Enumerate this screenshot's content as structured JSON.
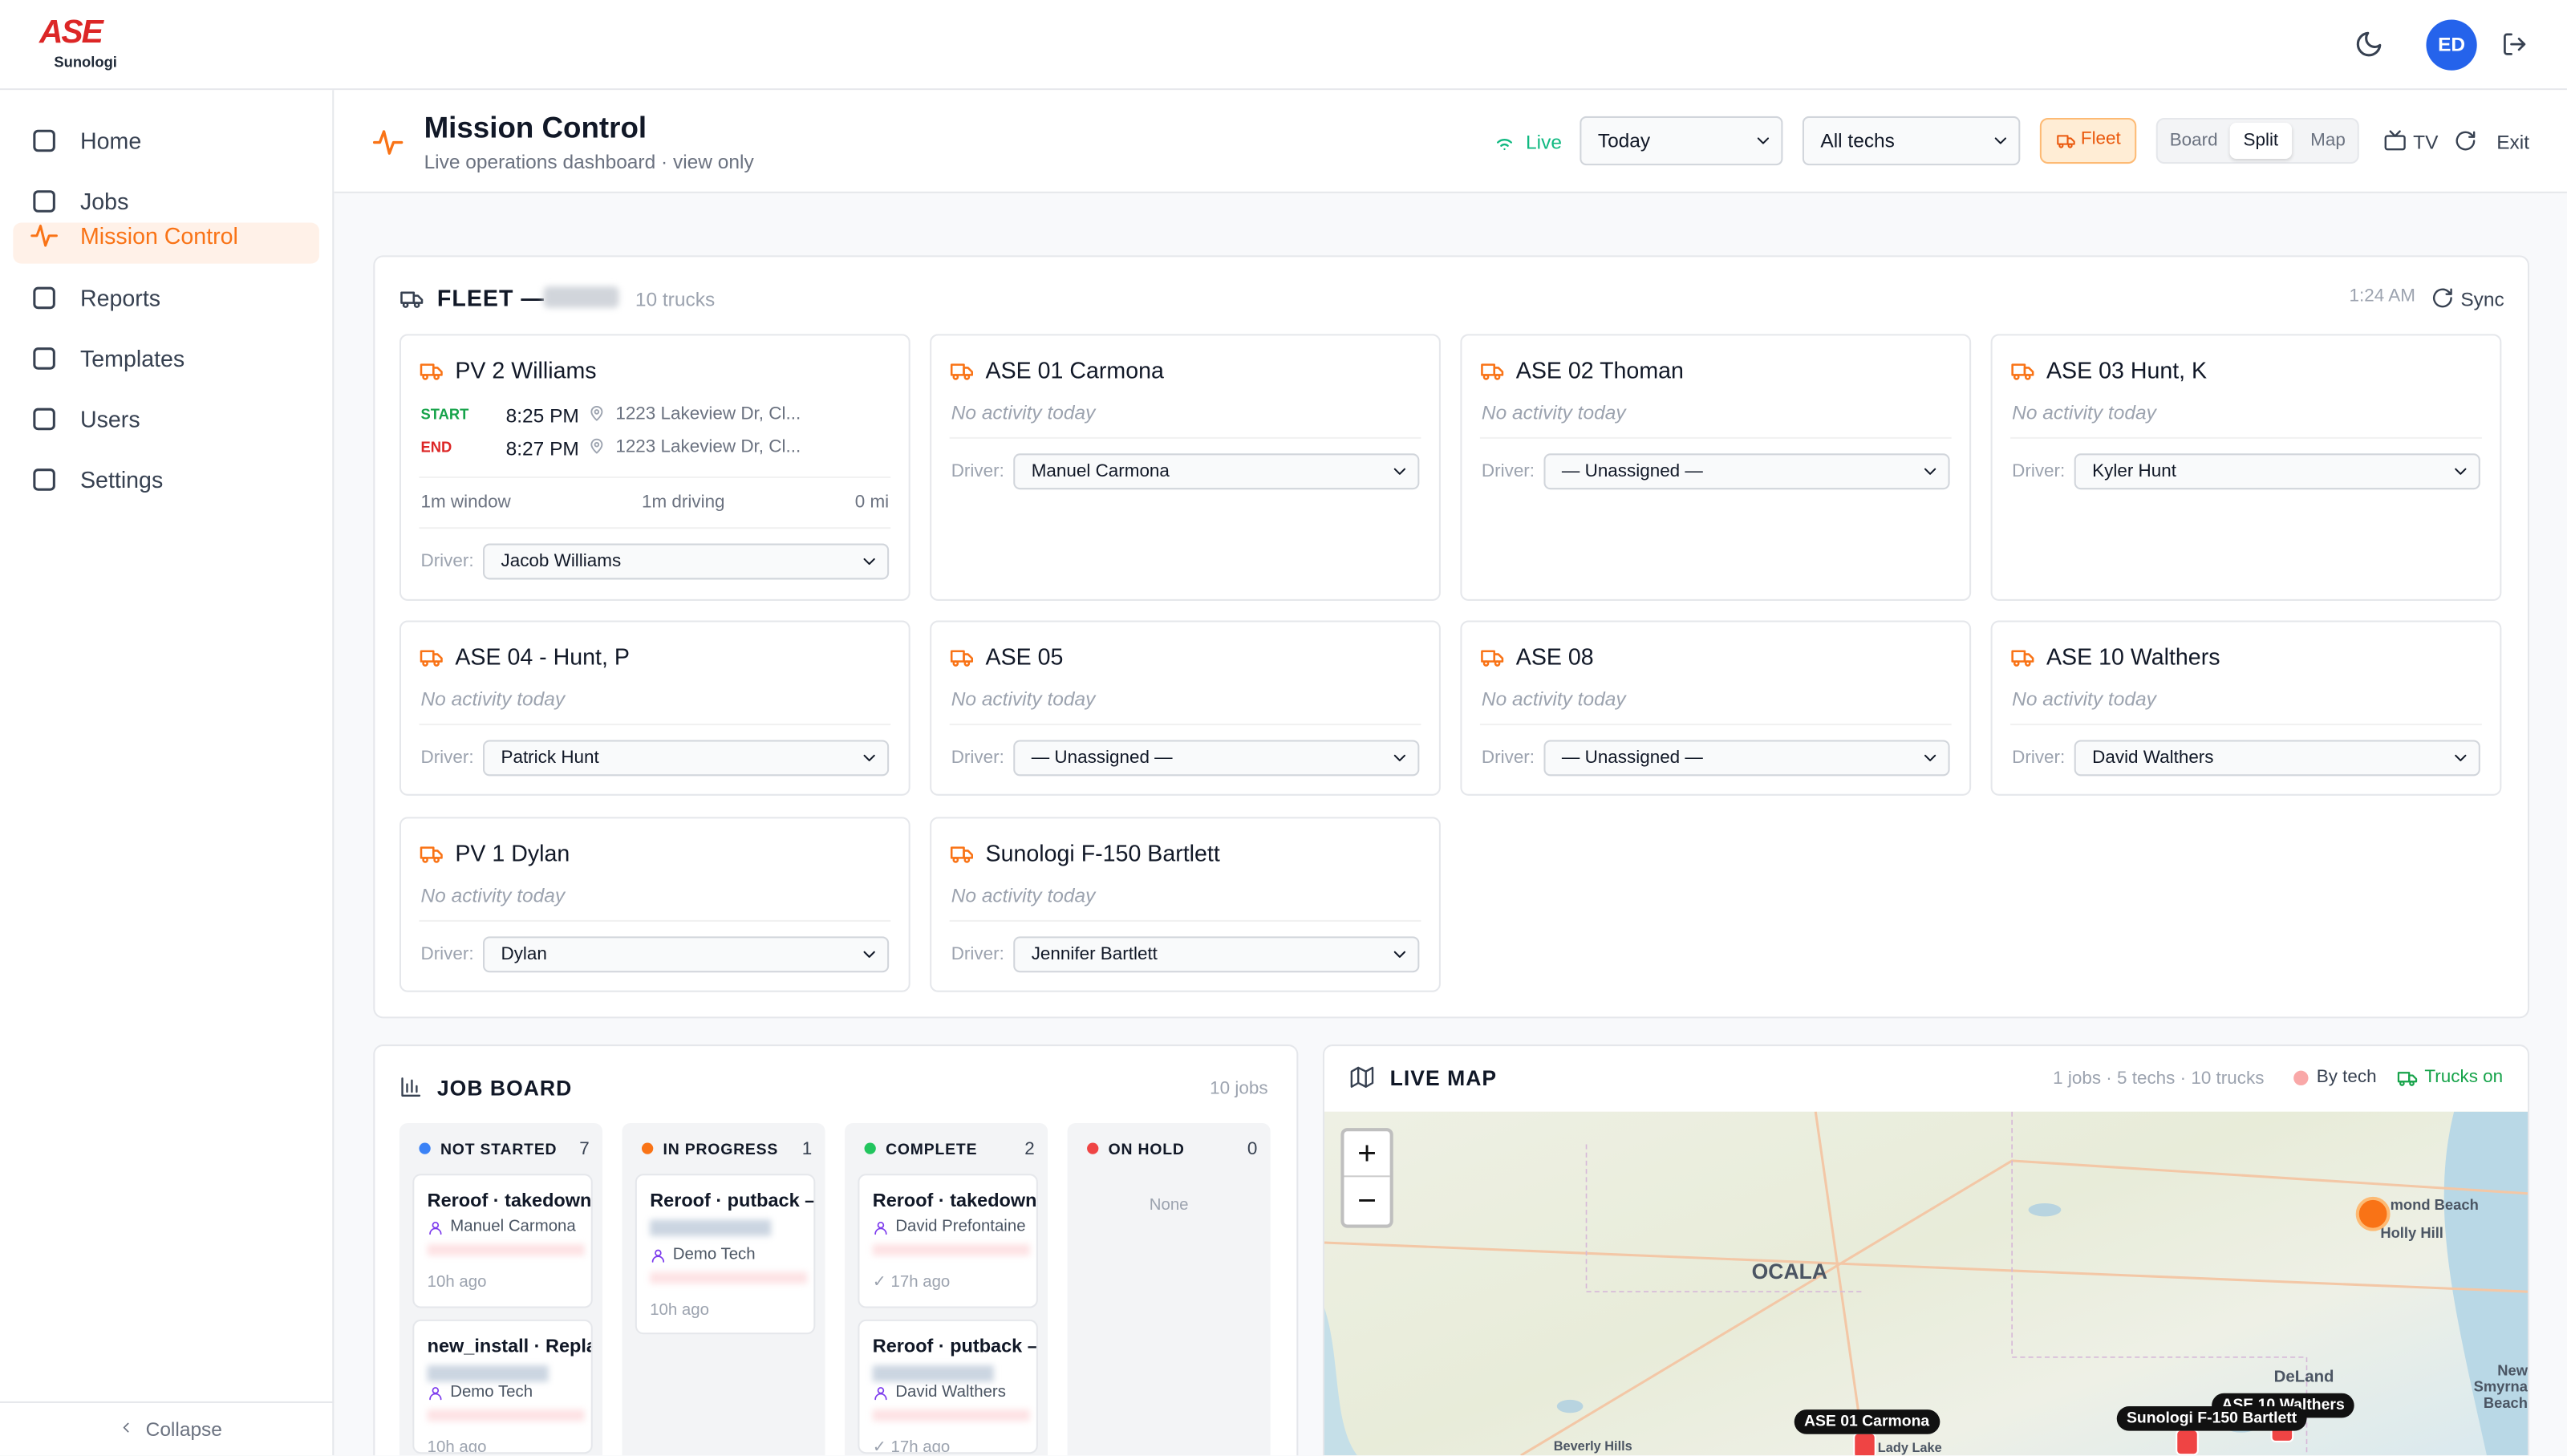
{
  "header": {
    "logo": "ASE",
    "logo_sub": "Sunologi",
    "avatar": "ED"
  },
  "sidebar": {
    "nav": [
      "Home",
      "Jobs",
      "Mission Control",
      "Reports",
      "Templates",
      "Users",
      "Settings"
    ],
    "active": 2,
    "collapse": "Collapse"
  },
  "page": {
    "title": "Mission Control",
    "subtitle": "Live operations dashboard · view only",
    "live": "Live",
    "date_filter": "Today",
    "tech_filter": "All techs",
    "fleet_button": "Fleet",
    "views": [
      "Board",
      "Split",
      "Map"
    ],
    "active_view": 1,
    "tv": "TV",
    "exit": "Exit"
  },
  "fleet": {
    "title": "FLEET —",
    "count": "10 trucks",
    "time": "1:24 AM",
    "sync": "Sync",
    "driver_label": "Driver:",
    "trucks": [
      {
        "name": "PV 2 Williams",
        "start_label": "START",
        "start_time": "8:25 PM",
        "start_address": "1223 Lakeview Dr, Cl...",
        "end_label": "END",
        "end_time": "8:27 PM",
        "end_address": "1223 Lakeview Dr, Cl...",
        "window": "1m window",
        "driving": "1m driving",
        "distance": "0 mi",
        "driver": "Jacob Williams"
      },
      {
        "name": "ASE 01 Carmona",
        "status": "No activity today",
        "driver": "Manuel Carmona"
      },
      {
        "name": "ASE 02 Thoman",
        "status": "No activity today",
        "driver": "— Unassigned —"
      },
      {
        "name": "ASE 03 Hunt, K",
        "status": "No activity today",
        "driver": "Kyler Hunt"
      },
      {
        "name": "ASE 04 - Hunt, P",
        "status": "No activity today",
        "driver": "Patrick Hunt"
      },
      {
        "name": "ASE 05",
        "status": "No activity today",
        "driver": "— Unassigned —"
      },
      {
        "name": "ASE 08",
        "status": "No activity today",
        "driver": "— Unassigned —"
      },
      {
        "name": "ASE 10 Walthers",
        "status": "No activity today",
        "driver": "David Walthers"
      },
      {
        "name": "PV 1 Dylan",
        "status": "No activity today",
        "driver": "Dylan"
      },
      {
        "name": "Sunologi F-150 Bartlett",
        "status": "No activity today",
        "driver": "Jennifer Bartlett"
      }
    ]
  },
  "job_board": {
    "title": "JOB BOARD",
    "count": "10 jobs",
    "columns": [
      {
        "name": "NOT STARTED",
        "count": 7,
        "color": "#3b82f6",
        "cards": [
          {
            "title": "Reroof · takedown",
            "tech": "Manuel Carmona",
            "time": "10h ago"
          },
          {
            "title": "new_install · Repla",
            "tech": "Demo Tech",
            "time": "10h ago"
          }
        ]
      },
      {
        "name": "IN PROGRESS",
        "count": 1,
        "color": "#f97316",
        "cards": [
          {
            "title": "Reroof · putback –",
            "tech": "Demo Tech",
            "time": "10h ago"
          }
        ]
      },
      {
        "name": "COMPLETE",
        "count": 2,
        "color": "#22c55e",
        "cards": [
          {
            "title": "Reroof · takedown",
            "tech": "David Prefontaine",
            "time": "✓ 17h ago"
          },
          {
            "title": "Reroof · putback –",
            "tech": "David Walthers",
            "time": "✓ 17h ago"
          }
        ]
      },
      {
        "name": "ON HOLD",
        "count": 0,
        "color": "#ef4444",
        "cards": [],
        "empty": "None"
      }
    ]
  },
  "live_map": {
    "title": "LIVE MAP",
    "summary": "1 jobs · 5 techs · 10 trucks",
    "by_tech": "By tech",
    "trucks_on": "Trucks on",
    "zoom_in": "+",
    "zoom_out": "−",
    "places": [
      "OCALA",
      "mond Beach",
      "Holly Hill",
      "DeLand",
      "New Smyrna Beach",
      "Beverly Hills",
      "Lady Lake"
    ],
    "markers": [
      "ASE 01 Carmona",
      "ASE 10 Walthers",
      "Sunologi F-150 Bartlett"
    ]
  }
}
